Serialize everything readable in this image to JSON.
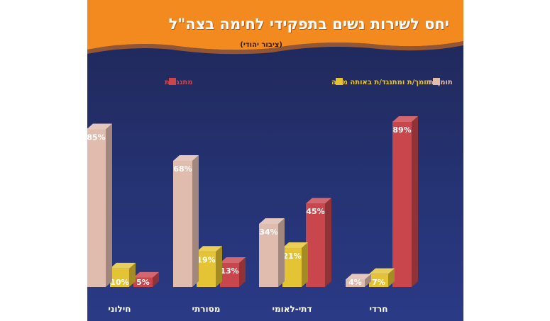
{
  "chart_data": {
    "type": "bar",
    "title": "יחס לשירות נשים בתפקידי לחימה בצה\"ל",
    "subtitle": "(ציבור יהודי)",
    "categories": [
      "חרדי",
      "דתי-לאומי",
      "מסורתי",
      "חילוני"
    ],
    "series": [
      {
        "name": "מתנגד/ת",
        "values": [
          89,
          45,
          13,
          5
        ],
        "color": "#c9464d"
      },
      {
        "name": "תומך/ת ומתנגד/ת באותה מידה",
        "values": [
          7,
          21,
          19,
          10
        ],
        "color": "#e4c334"
      },
      {
        "name": "תומך/ת",
        "values": [
          4,
          34,
          68,
          85
        ],
        "color": "#dfbcae"
      }
    ],
    "value_suffix": "%",
    "ylim": [
      0,
      100
    ],
    "grid": false,
    "legend_position": "top",
    "colors": {
      "background_top": "#1f2755",
      "background_bottom": "#2a3a85",
      "header": "#f28a1f"
    }
  }
}
